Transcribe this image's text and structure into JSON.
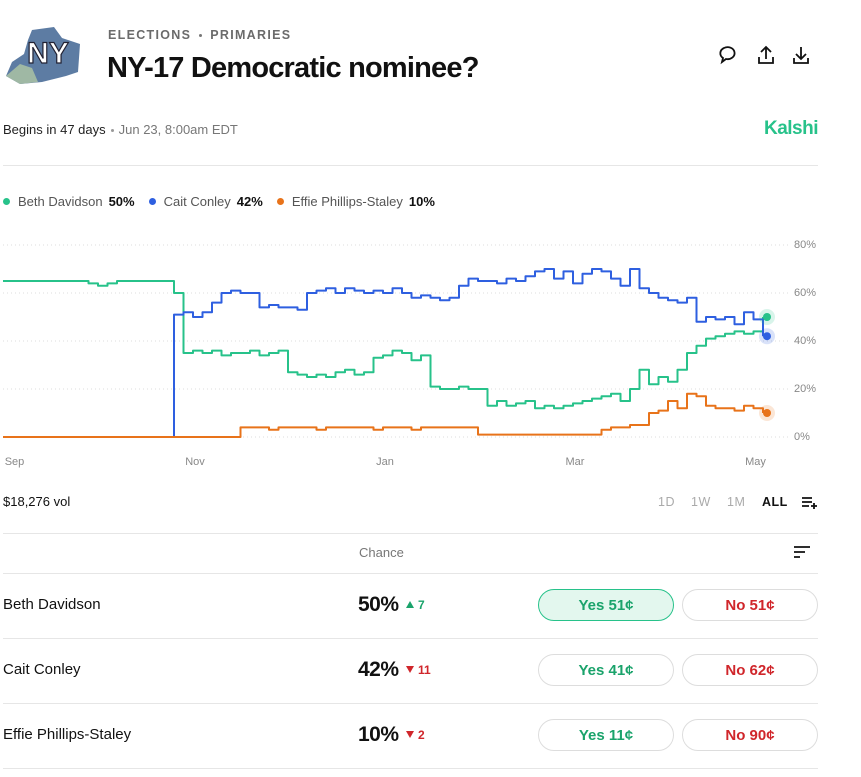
{
  "header": {
    "logo_text": "NY",
    "breadcrumb": [
      "ELECTIONS",
      "PRIMARIES"
    ],
    "title": "NY-17 Democratic nominee?",
    "begins": "Begins in 47 days",
    "date": "Jun 23, 8:00am EDT",
    "brand": "Kalshi"
  },
  "chart_data": {
    "type": "line",
    "categories": [
      null,
      "Sep",
      null,
      null,
      null,
      null,
      null,
      null,
      null,
      null,
      null,
      null,
      null,
      null,
      null,
      null,
      null,
      null,
      null,
      null,
      "Nov",
      null,
      null,
      null,
      null,
      null,
      null,
      null,
      null,
      null,
      null,
      null,
      null,
      null,
      null,
      null,
      null,
      null,
      null,
      null,
      "Jan",
      null,
      null,
      null,
      null,
      null,
      null,
      null,
      null,
      null,
      null,
      null,
      null,
      null,
      null,
      null,
      null,
      null,
      null,
      null,
      "Mar",
      null,
      null,
      null,
      null,
      null,
      null,
      null,
      null,
      null,
      null,
      null,
      null,
      null,
      null,
      null,
      null,
      null,
      null,
      "May",
      null
    ],
    "series": [
      {
        "name": "Beth Davidson",
        "color": "#27c28a",
        "values": [
          65,
          65,
          65,
          65,
          65,
          65,
          65,
          65,
          65,
          64,
          63,
          64,
          65,
          65,
          65,
          65,
          65,
          65,
          60,
          35,
          36,
          35,
          36,
          34,
          35,
          35,
          36,
          34,
          35,
          36,
          27,
          26,
          25,
          26,
          25,
          27,
          28,
          26,
          27,
          33,
          34,
          36,
          35,
          32,
          34,
          21,
          20,
          20,
          21,
          20,
          20,
          13,
          15,
          13,
          14,
          15,
          12,
          13,
          12,
          13,
          14,
          15,
          16,
          17,
          18,
          15,
          20,
          28,
          22,
          25,
          23,
          28,
          35,
          38,
          41,
          42,
          43,
          44,
          43,
          44,
          50
        ]
      },
      {
        "name": "Cait Conley",
        "color": "#2e5fe0",
        "values": [
          0,
          0,
          0,
          0,
          0,
          0,
          0,
          0,
          0,
          0,
          0,
          0,
          0,
          0,
          0,
          0,
          0,
          0,
          51,
          52,
          50,
          52,
          56,
          60,
          61,
          60,
          60,
          54,
          55,
          54,
          54,
          53,
          60,
          61,
          62,
          60,
          62,
          61,
          60,
          61,
          60,
          62,
          60,
          58,
          59,
          58,
          57,
          58,
          63,
          66,
          65,
          65,
          64,
          66,
          65,
          67,
          69,
          70,
          66,
          69,
          64,
          68,
          70,
          69,
          66,
          63,
          70,
          62,
          60,
          58,
          57,
          56,
          58,
          48,
          50,
          49,
          50,
          47,
          52,
          49,
          42
        ]
      },
      {
        "name": "Effie Phillips-Staley",
        "color": "#e8731a",
        "values": [
          0,
          0,
          0,
          0,
          0,
          0,
          0,
          0,
          0,
          0,
          0,
          0,
          0,
          0,
          0,
          0,
          0,
          0,
          0,
          0,
          0,
          0,
          0,
          0,
          0,
          4,
          4,
          4,
          3,
          4,
          4,
          4,
          4,
          3,
          4,
          4,
          4,
          4,
          4,
          3,
          4,
          4,
          4,
          3,
          4,
          4,
          4,
          4,
          4,
          4,
          1,
          1,
          1,
          1,
          1,
          1,
          1,
          1,
          1,
          1,
          1,
          1,
          1,
          3,
          4,
          4,
          5,
          5,
          10,
          11,
          15,
          12,
          18,
          17,
          13,
          12,
          12,
          11,
          13,
          12,
          10
        ]
      }
    ],
    "ylim": [
      0,
      80
    ],
    "yticks": [
      {
        "value": 0,
        "label": "0%"
      },
      {
        "value": 20,
        "label": "20%"
      },
      {
        "value": 40,
        "label": "40%"
      },
      {
        "value": 60,
        "label": "60%"
      },
      {
        "value": 80,
        "label": "80%"
      }
    ],
    "grid": true
  },
  "volume": "$18,276 vol",
  "ranges": [
    "1D",
    "1W",
    "1M",
    "ALL"
  ],
  "active_range": "ALL",
  "table": {
    "header": "Chance",
    "rows": [
      {
        "name": "Beth Davidson",
        "chance": "50%",
        "change": "7",
        "direction": "up",
        "yes": "Yes 51¢",
        "no": "No 51¢",
        "highlighted": true
      },
      {
        "name": "Cait Conley",
        "chance": "42%",
        "change": "11",
        "direction": "down",
        "yes": "Yes 41¢",
        "no": "No 62¢",
        "highlighted": false
      },
      {
        "name": "Effie Phillips-Staley",
        "chance": "10%",
        "change": "2",
        "direction": "down",
        "yes": "Yes 11¢",
        "no": "No 90¢",
        "highlighted": false
      }
    ]
  }
}
